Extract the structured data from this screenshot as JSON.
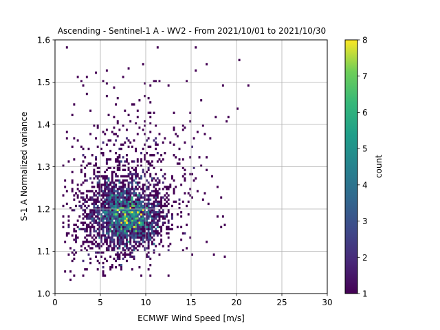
{
  "chart_data": {
    "type": "heatmap",
    "title": "Ascending - Sentinel-1 A - WV2 - From 2021/10/01 to 2021/10/30",
    "xlabel": "ECMWF Wind Speed [m/s]",
    "ylabel": "S-1 A Normalized variance",
    "xlim": [
      0,
      30
    ],
    "ylim": [
      1.0,
      1.6
    ],
    "xticks": [
      "0",
      "5",
      "10",
      "15",
      "20",
      "25",
      "30"
    ],
    "yticks": [
      "1.0",
      "1.1",
      "1.2",
      "1.3",
      "1.4",
      "1.5",
      "1.6"
    ],
    "grid": true,
    "colormap": "viridis",
    "colorbar": {
      "label": "count",
      "range": [
        1,
        8
      ],
      "ticks": [
        "1",
        "2",
        "3",
        "4",
        "5",
        "6",
        "7",
        "8"
      ]
    },
    "bin_width": [
      0.2,
      0.005
    ],
    "distribution": {
      "x_range": [
        0.8,
        21.5
      ],
      "y_range": [
        1.04,
        1.58
      ],
      "core_center": [
        8.0,
        1.18
      ],
      "max_count": 8
    },
    "outlier_points": [
      [
        1.4,
        1.58
      ],
      [
        2.5,
        1.51
      ],
      [
        2.9,
        1.5
      ],
      [
        3.1,
        1.49
      ],
      [
        4.4,
        1.52
      ],
      [
        5.2,
        1.5
      ],
      [
        7.6,
        1.51
      ],
      [
        9.8,
        1.47
      ],
      [
        10.4,
        1.49
      ],
      [
        11.6,
        1.5
      ],
      [
        12.6,
        1.49
      ],
      [
        14.4,
        1.5
      ],
      [
        15.4,
        1.58
      ],
      [
        16.7,
        1.54
      ],
      [
        18.5,
        1.49
      ],
      [
        20.2,
        1.44
      ],
      [
        20.3,
        1.55
      ],
      [
        21.4,
        1.49
      ],
      [
        16.0,
        1.46
      ],
      [
        17.6,
        1.42
      ],
      [
        18.9,
        1.41
      ],
      [
        16.3,
        1.4
      ],
      [
        19.1,
        1.42
      ],
      [
        17.8,
        1.25
      ],
      [
        18.3,
        1.23
      ],
      [
        15.5,
        1.27
      ],
      [
        15.7,
        1.24
      ],
      [
        14.7,
        1.22
      ],
      [
        16.0,
        1.3
      ],
      [
        14.2,
        1.1
      ],
      [
        11.4,
        1.09
      ],
      [
        12.6,
        1.11
      ],
      [
        1.0,
        1.05
      ],
      [
        1.6,
        1.03
      ],
      [
        1.7,
        1.05
      ],
      [
        5.2,
        1.05
      ],
      [
        8.1,
        1.53
      ],
      [
        11.3,
        1.58
      ],
      [
        6.5,
        1.42
      ],
      [
        8.4,
        1.45
      ]
    ]
  }
}
